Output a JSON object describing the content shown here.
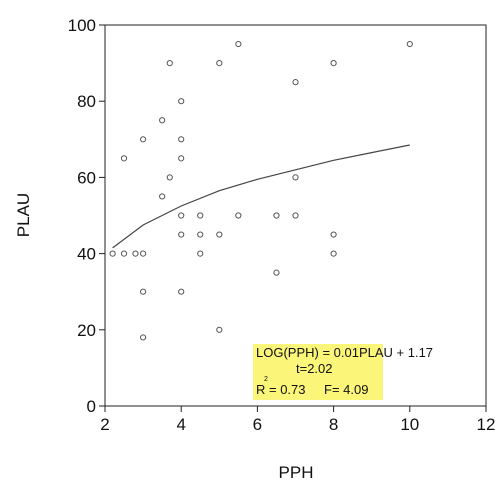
{
  "chart_data": {
    "type": "scatter",
    "xlabel": "PPH",
    "ylabel": "PLAU",
    "xlim": [
      2,
      12
    ],
    "ylim": [
      0,
      100
    ],
    "xticks": [
      2,
      4,
      6,
      8,
      10,
      12
    ],
    "yticks": [
      0,
      20,
      40,
      60,
      80,
      100
    ],
    "grid": false,
    "marker_color": "#555555",
    "line_color": "#444444",
    "annotation_bg": "#fbf57a",
    "points": [
      {
        "x": 2.2,
        "y": 40
      },
      {
        "x": 2.5,
        "y": 40
      },
      {
        "x": 2.8,
        "y": 40
      },
      {
        "x": 3.0,
        "y": 40
      },
      {
        "x": 2.5,
        "y": 65
      },
      {
        "x": 3.0,
        "y": 70
      },
      {
        "x": 3.0,
        "y": 30
      },
      {
        "x": 3.0,
        "y": 18
      },
      {
        "x": 3.5,
        "y": 75
      },
      {
        "x": 3.5,
        "y": 55
      },
      {
        "x": 3.7,
        "y": 90
      },
      {
        "x": 3.7,
        "y": 60
      },
      {
        "x": 4.0,
        "y": 80
      },
      {
        "x": 4.0,
        "y": 70
      },
      {
        "x": 4.0,
        "y": 65
      },
      {
        "x": 4.0,
        "y": 50
      },
      {
        "x": 4.0,
        "y": 45
      },
      {
        "x": 4.0,
        "y": 30
      },
      {
        "x": 4.5,
        "y": 50
      },
      {
        "x": 4.5,
        "y": 45
      },
      {
        "x": 4.5,
        "y": 40
      },
      {
        "x": 5.0,
        "y": 90
      },
      {
        "x": 5.0,
        "y": 45
      },
      {
        "x": 5.0,
        "y": 20
      },
      {
        "x": 5.5,
        "y": 95
      },
      {
        "x": 5.5,
        "y": 50
      },
      {
        "x": 6.5,
        "y": 50
      },
      {
        "x": 6.5,
        "y": 35
      },
      {
        "x": 7.0,
        "y": 85
      },
      {
        "x": 7.0,
        "y": 60
      },
      {
        "x": 7.0,
        "y": 50
      },
      {
        "x": 8.0,
        "y": 90
      },
      {
        "x": 8.0,
        "y": 45
      },
      {
        "x": 8.0,
        "y": 40
      },
      {
        "x": 10.0,
        "y": 95
      }
    ],
    "fit_curve": {
      "x": [
        2.2,
        3.0,
        4.0,
        5.0,
        6.0,
        7.0,
        8.0,
        9.0,
        10.0
      ],
      "y": [
        41.5,
        47.5,
        52.5,
        56.5,
        59.5,
        62.0,
        64.5,
        66.5,
        68.5
      ]
    },
    "annotation": {
      "line1": "LOG(PPH) = 0.01PLAU + 1.17",
      "line2": "t=2.02",
      "superscript": "2",
      "line3_left": "R = 0.73",
      "line3_right": "F= 4.09"
    }
  }
}
